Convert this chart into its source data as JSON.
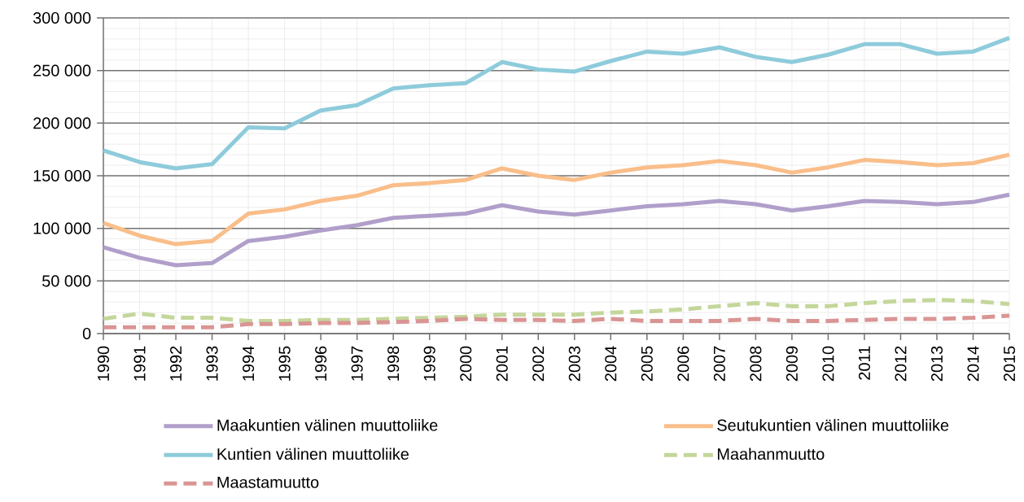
{
  "chart_data": {
    "type": "line",
    "categories": [
      "1990",
      "1991",
      "1992",
      "1993",
      "1994",
      "1995",
      "1996",
      "1997",
      "1998",
      "1999",
      "2000",
      "2001",
      "2002",
      "2003",
      "2004",
      "2005",
      "2006",
      "2007",
      "2008",
      "2009",
      "2010",
      "2011",
      "2012",
      "2013",
      "2014",
      "2015"
    ],
    "ylim": [
      0,
      300000
    ],
    "yticks": [
      0,
      {
        "value": 50000,
        "label": "50 000"
      },
      {
        "value": 100000,
        "label": "100 000"
      },
      {
        "value": 150000,
        "label": "150 000"
      },
      {
        "value": 200000,
        "label": "200 000"
      },
      {
        "value": 250000,
        "label": "250 000"
      },
      {
        "value": 300000,
        "label": "300 000"
      }
    ],
    "grid": true,
    "legend": "bottom",
    "marker": "none",
    "series": [
      {
        "name": "Maakuntien välinen muuttoliike",
        "color": "#b09fca",
        "line_style": "solid",
        "values": [
          82000,
          72000,
          65000,
          67000,
          88000,
          92000,
          98000,
          103000,
          110000,
          112000,
          114000,
          122000,
          116000,
          113000,
          117000,
          121000,
          123000,
          126000,
          123000,
          117000,
          121000,
          126000,
          125000,
          123000,
          125000,
          132000
        ]
      },
      {
        "name": "Seutukuntien välinen muuttoliike",
        "color": "#f9be8a",
        "line_style": "solid",
        "values": [
          105000,
          93000,
          85000,
          88000,
          114000,
          118000,
          126000,
          131000,
          141000,
          143000,
          146000,
          157000,
          150000,
          146000,
          153000,
          158000,
          160000,
          164000,
          160000,
          153000,
          158000,
          165000,
          163000,
          160000,
          162000,
          170000
        ]
      },
      {
        "name": "Kuntien välinen muuttoliike",
        "color": "#8ecbdb",
        "line_style": "solid",
        "values": [
          174000,
          163000,
          157000,
          161000,
          196000,
          195000,
          212000,
          217000,
          233000,
          236000,
          238000,
          258000,
          251000,
          249000,
          259000,
          268000,
          266000,
          272000,
          263000,
          258000,
          265000,
          275000,
          275000,
          266000,
          268000,
          281000
        ]
      },
      {
        "name": "Maahanmuutto",
        "color": "#c4d79b",
        "line_style": "dashed",
        "values": [
          14000,
          19000,
          15000,
          15000,
          12000,
          12000,
          13000,
          13000,
          14000,
          15000,
          16000,
          18000,
          18000,
          18000,
          20000,
          21000,
          23000,
          26000,
          29000,
          26000,
          26000,
          29000,
          31000,
          32000,
          31000,
          28000
        ]
      },
      {
        "name": "Maastamuutto",
        "color": "#d99594",
        "line_style": "dashed",
        "values": [
          6000,
          6000,
          6000,
          6000,
          9000,
          9000,
          10000,
          10000,
          11000,
          12000,
          14000,
          13000,
          13000,
          12000,
          14000,
          12000,
          12000,
          12000,
          14000,
          12000,
          12000,
          13000,
          14000,
          14000,
          15000,
          17000
        ]
      }
    ]
  }
}
